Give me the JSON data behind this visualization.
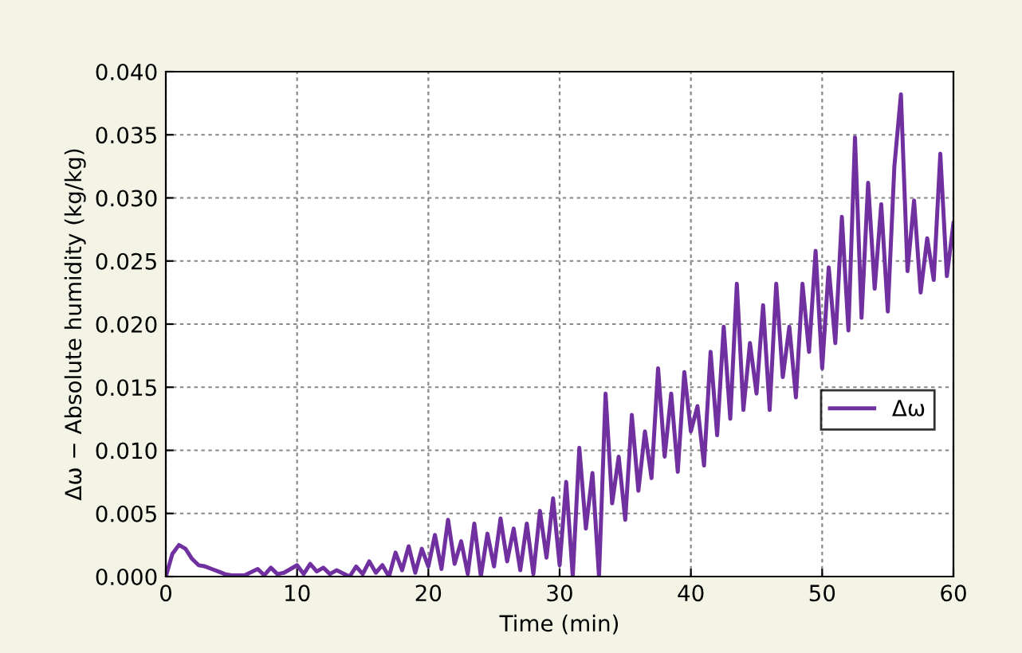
{
  "chart_data": {
    "type": "line",
    "xlabel": "Time (min)",
    "ylabel": "Δω − Absolute humidity (kg/kg)",
    "xlim": [
      0,
      60
    ],
    "ylim": [
      0,
      0.04
    ],
    "xticks": [
      0,
      10,
      20,
      30,
      40,
      50,
      60
    ],
    "yticks": [
      {
        "value": 0,
        "label": "0.000"
      },
      {
        "value": 0.005,
        "label": "0.005"
      },
      {
        "value": 0.01,
        "label": "0.010"
      },
      {
        "value": 0.015,
        "label": "0.015"
      },
      {
        "value": 0.02,
        "label": "0.020"
      },
      {
        "value": 0.025,
        "label": "0.025"
      },
      {
        "value": 0.03,
        "label": "0.030"
      },
      {
        "value": 0.035,
        "label": "0.035"
      },
      {
        "value": 0.04,
        "label": "0.040"
      }
    ],
    "grid": true,
    "legend": "right",
    "line_style": "solid",
    "marker": "none",
    "series": [
      {
        "name": "Δω",
        "color": "#7030a0",
        "x": [
          0,
          0.5,
          1,
          1.5,
          2,
          2.5,
          3,
          3.5,
          4,
          4.5,
          5,
          6,
          7,
          7.5,
          8,
          8.5,
          9,
          10,
          10.5,
          11,
          11.5,
          12,
          12.5,
          13,
          14,
          14.5,
          15,
          15.5,
          16,
          16.5,
          17,
          17.5,
          18,
          18.5,
          19,
          19.5,
          20,
          20.5,
          21,
          21.5,
          22,
          22.5,
          23,
          23.5,
          24,
          24.5,
          25,
          25.5,
          26,
          26.5,
          27,
          27.5,
          28,
          28.5,
          29,
          29.5,
          30,
          30.5,
          31,
          31.5,
          32,
          32.5,
          33,
          33.5,
          34,
          34.5,
          35,
          35.5,
          36,
          36.5,
          37,
          37.5,
          38,
          38.5,
          39,
          39.5,
          40,
          40.5,
          41,
          41.5,
          42,
          42.5,
          43,
          43.5,
          44,
          44.5,
          45,
          45.5,
          46,
          46.5,
          47,
          47.5,
          48,
          48.5,
          49,
          49.5,
          50,
          50.5,
          51,
          51.5,
          52,
          52.5,
          53,
          53.5,
          54,
          54.5,
          55,
          55.5,
          56,
          56.5,
          57,
          57.5,
          58,
          58.5,
          59,
          59.5,
          60
        ],
        "values": [
          0,
          0.0018,
          0.0025,
          0.0022,
          0.0014,
          0.0009,
          0.0008,
          0.0006,
          0.0004,
          0.0002,
          0.0001,
          0.0001,
          0.0006,
          0.0001,
          0.0007,
          0.0002,
          0.0003,
          0.0009,
          0.0002,
          0.001,
          0.0004,
          0.0007,
          0.0002,
          0.0005,
          0.0,
          0.0008,
          0.0002,
          0.0012,
          0.0003,
          0.0009,
          0.0,
          0.0019,
          0.0005,
          0.0024,
          0.0003,
          0.0022,
          0.0008,
          0.0033,
          0.0006,
          0.0045,
          0.001,
          0.0028,
          0.0002,
          0.0042,
          0.0,
          0.0034,
          0.0008,
          0.0046,
          0.0012,
          0.0038,
          0.0005,
          0.0042,
          0.0002,
          0.0052,
          0.0015,
          0.0062,
          0.0009,
          0.0075,
          0.0,
          0.0102,
          0.0038,
          0.0082,
          0.0,
          0.0145,
          0.0058,
          0.0095,
          0.0045,
          0.0128,
          0.0068,
          0.0115,
          0.0078,
          0.0165,
          0.0095,
          0.0145,
          0.0083,
          0.0162,
          0.0115,
          0.0135,
          0.0088,
          0.0178,
          0.0112,
          0.0198,
          0.0125,
          0.0232,
          0.0132,
          0.0185,
          0.0145,
          0.0215,
          0.0132,
          0.0232,
          0.0158,
          0.0198,
          0.0142,
          0.0232,
          0.0178,
          0.0258,
          0.0165,
          0.0245,
          0.0185,
          0.0285,
          0.0195,
          0.0348,
          0.0205,
          0.0312,
          0.0228,
          0.0295,
          0.021,
          0.0325,
          0.0382,
          0.0242,
          0.0298,
          0.0225,
          0.0268,
          0.0235,
          0.0335,
          0.0238,
          0.028
        ]
      }
    ]
  }
}
